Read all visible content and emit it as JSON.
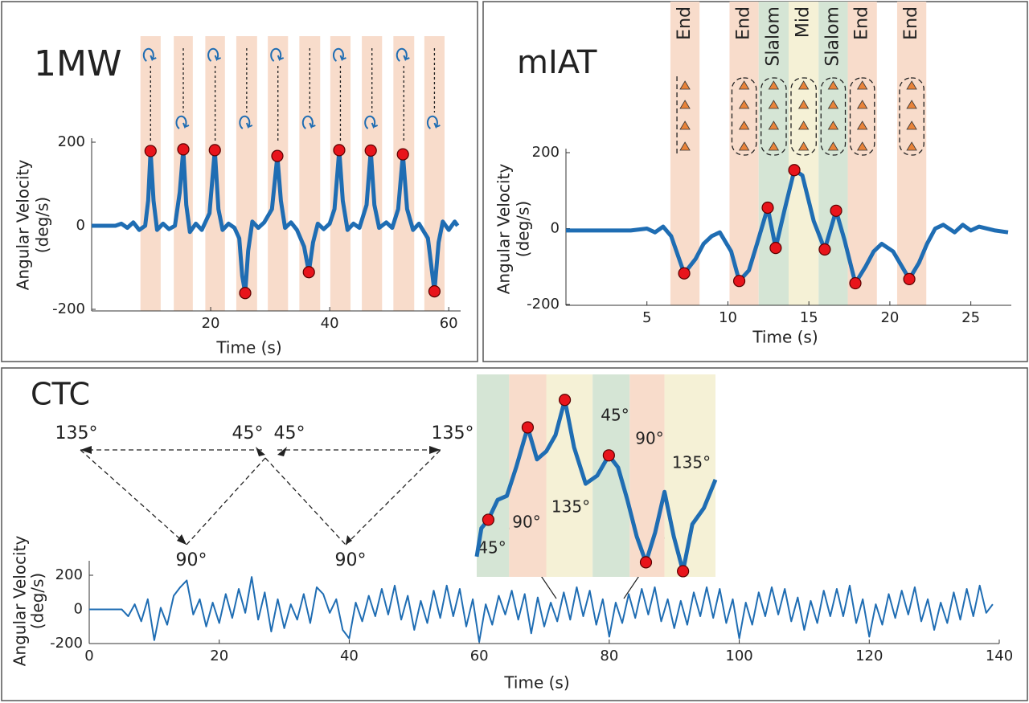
{
  "chart_data": [
    {
      "type": "line",
      "title": "1MW",
      "xlabel": "Time (s)",
      "ylabel": [
        "Angular Velocity",
        "(deg/s)"
      ],
      "xlim": [
        0,
        62
      ],
      "ylim": [
        -200,
        200
      ],
      "xticks": [
        20,
        40,
        60
      ],
      "yticks": [
        -200,
        0,
        200
      ],
      "color": "#1f6db3",
      "x": [
        0,
        4,
        5,
        6,
        7,
        8,
        9,
        9.5,
        9.9,
        10.4,
        11,
        12,
        13,
        14,
        14.8,
        15.4,
        15.9,
        16.5,
        17.5,
        18.5,
        19.8,
        20.7,
        21.3,
        22,
        23,
        24,
        24.8,
        25.3,
        25.8,
        26.3,
        27,
        28,
        29,
        30.3,
        31.2,
        31.8,
        32.5,
        33.5,
        34.5,
        35.7,
        36.5,
        37.2,
        38,
        39,
        40,
        40.8,
        41.6,
        42.2,
        43,
        44,
        45,
        46.2,
        46.9,
        47.5,
        48.3,
        49.5,
        50.5,
        51.5,
        52.3,
        53,
        54,
        55,
        56.5,
        57.6,
        58.3,
        59,
        60,
        61,
        61.5
      ],
      "values": [
        0,
        0,
        5,
        -5,
        8,
        -10,
        0,
        60,
        179,
        60,
        -10,
        5,
        -8,
        0,
        80,
        183,
        50,
        -15,
        5,
        -10,
        30,
        181,
        40,
        -10,
        5,
        -5,
        -30,
        -120,
        -161,
        -60,
        10,
        -5,
        8,
        40,
        167,
        60,
        -5,
        8,
        -10,
        -50,
        -111,
        -40,
        5,
        -8,
        5,
        40,
        181,
        60,
        -10,
        5,
        -5,
        50,
        180,
        50,
        -5,
        8,
        -5,
        40,
        171,
        40,
        -10,
        5,
        -30,
        -157,
        -40,
        10,
        -10,
        10,
        0
      ],
      "markers": {
        "color": "#e8141b",
        "x": [
          9.9,
          15.4,
          20.7,
          25.8,
          31.2,
          36.5,
          41.6,
          46.9,
          52.3,
          57.6
        ],
        "values": [
          179,
          183,
          181,
          -161,
          167,
          -111,
          181,
          180,
          171,
          -157
        ]
      },
      "bands": [
        {
          "range": [
            8.2,
            11.6
          ],
          "color": "#f8dccb"
        },
        {
          "range": [
            13.8,
            17.0
          ],
          "color": "#f8dccb"
        },
        {
          "range": [
            19.1,
            22.4
          ],
          "color": "#f8dccb"
        },
        {
          "range": [
            24.3,
            27.8
          ],
          "color": "#f8dccb"
        },
        {
          "range": [
            29.6,
            33.0
          ],
          "color": "#f8dccb"
        },
        {
          "range": [
            34.9,
            38.4
          ],
          "color": "#f8dccb"
        },
        {
          "range": [
            40.1,
            43.5
          ],
          "color": "#f8dccb"
        },
        {
          "range": [
            45.4,
            48.8
          ],
          "color": "#f8dccb"
        },
        {
          "range": [
            50.7,
            54.2
          ],
          "color": "#f8dccb"
        },
        {
          "range": [
            55.9,
            59.3
          ],
          "color": "#f8dccb"
        }
      ]
    },
    {
      "type": "line",
      "title": "mIAT",
      "xlabel": "Time (s)",
      "ylabel": [
        "Angular Velocity",
        "(deg/s)"
      ],
      "xlim": [
        0,
        27.5
      ],
      "ylim": [
        -200,
        200
      ],
      "xticks": [
        5,
        10,
        15,
        20,
        25
      ],
      "yticks": [
        -200,
        0,
        200
      ],
      "color": "#1f6db3",
      "x": [
        0,
        4,
        5,
        5.5,
        6,
        6.5,
        7.3,
        8,
        8.5,
        9,
        9.5,
        10.2,
        10.7,
        11.3,
        11.8,
        12.46,
        12.95,
        13.5,
        14.1,
        14.6,
        15.3,
        15.98,
        16.68,
        17.2,
        17.87,
        18.5,
        19,
        19.5,
        20.2,
        21.2,
        21.8,
        22.3,
        22.8,
        23.3,
        24,
        24.5,
        25,
        25.5,
        26.5,
        27.3
      ],
      "values": [
        -5,
        -5,
        0,
        -10,
        5,
        -20,
        -118,
        -80,
        -40,
        -20,
        -10,
        -60,
        -138,
        -110,
        -40,
        55,
        -51,
        50,
        154,
        140,
        20,
        -55,
        47,
        -30,
        -144,
        -100,
        -60,
        -40,
        -60,
        -133,
        -90,
        -40,
        0,
        10,
        -10,
        10,
        -5,
        5,
        -5,
        -10
      ],
      "markers": {
        "color": "#e8141b",
        "x": [
          7.3,
          10.7,
          12.46,
          12.95,
          14.1,
          15.98,
          16.68,
          17.87,
          21.2
        ],
        "values": [
          -118,
          -138,
          55,
          -51,
          154,
          -55,
          47,
          -144,
          -133
        ]
      },
      "bands": [
        {
          "range": [
            6.45,
            8.25
          ],
          "color": "#f8dccb",
          "label": "End"
        },
        {
          "range": [
            10.1,
            11.9
          ],
          "color": "#f8dccb",
          "label": "End"
        },
        {
          "range": [
            11.9,
            13.75
          ],
          "color": "#d5e5d5",
          "label": "Slalom"
        },
        {
          "range": [
            13.75,
            15.6
          ],
          "color": "#f5f1d6",
          "label": "Mid"
        },
        {
          "range": [
            15.6,
            17.4
          ],
          "color": "#d5e5d5",
          "label": "Slalom"
        },
        {
          "range": [
            17.4,
            19.2
          ],
          "color": "#f8dccb",
          "label": "End"
        },
        {
          "range": [
            20.45,
            22.25
          ],
          "color": "#f8dccb",
          "label": "End"
        }
      ]
    },
    {
      "type": "line",
      "title": "CTC",
      "xlabel": "Time (s)",
      "ylabel": [
        "Angular Velocity",
        "(deg/s)"
      ],
      "xlim": [
        0,
        140
      ],
      "ylim": [
        -200,
        200
      ],
      "xticks": [
        0,
        20,
        40,
        60,
        80,
        100,
        120,
        140
      ],
      "yticks": [
        -200,
        0,
        200
      ],
      "color": "#1f6db3",
      "diagram_labels": [
        "135°",
        "45°",
        "45°",
        "135°",
        "90°",
        "90°"
      ],
      "x": [
        0,
        1,
        2,
        3,
        4,
        5,
        6,
        7,
        8,
        9,
        10,
        11,
        12,
        13,
        14,
        15,
        16,
        17,
        18,
        19,
        20,
        21,
        22,
        23,
        24,
        25,
        26,
        27,
        28,
        29,
        30,
        31,
        32,
        33,
        34,
        35,
        36,
        37,
        38,
        39,
        40,
        41,
        42,
        43,
        44,
        45,
        46,
        47,
        48,
        49,
        50,
        51,
        52,
        53,
        54,
        55,
        56,
        57,
        58,
        59,
        60,
        61,
        62,
        63,
        64,
        65,
        66,
        67,
        68,
        69,
        70,
        71,
        72,
        73,
        74,
        75,
        76,
        77,
        78,
        79,
        80,
        81,
        82,
        83,
        84,
        85,
        86,
        87,
        88,
        89,
        90,
        91,
        92,
        93,
        94,
        95,
        96,
        97,
        98,
        99,
        100,
        101,
        102,
        103,
        104,
        105,
        106,
        107,
        108,
        109,
        110,
        111,
        112,
        113,
        114,
        115,
        116,
        117,
        118,
        119,
        120,
        121,
        122,
        123,
        124,
        125,
        126,
        127,
        128,
        129,
        130,
        131,
        132,
        133,
        134,
        135,
        136,
        137,
        138,
        139
      ],
      "values": [
        0,
        0,
        0,
        0,
        0,
        0,
        -40,
        30,
        -70,
        60,
        -180,
        10,
        -90,
        80,
        130,
        170,
        -30,
        60,
        -100,
        40,
        -80,
        90,
        -50,
        120,
        -20,
        190,
        -60,
        100,
        -130,
        60,
        -110,
        30,
        -60,
        90,
        -80,
        130,
        90,
        -20,
        60,
        -120,
        -170,
        40,
        -70,
        80,
        -40,
        120,
        -30,
        140,
        -60,
        80,
        -120,
        50,
        -80,
        110,
        -50,
        140,
        -40,
        120,
        -100,
        60,
        -190,
        30,
        -90,
        80,
        -30,
        110,
        -60,
        90,
        -140,
        70,
        -100,
        40,
        -70,
        100,
        -60,
        130,
        -40,
        110,
        -90,
        60,
        -160,
        40,
        -80,
        90,
        -50,
        120,
        -30,
        130,
        -70,
        60,
        -110,
        50,
        -90,
        100,
        -40,
        130,
        -50,
        120,
        -80,
        60,
        -170,
        40,
        -90,
        100,
        -40,
        130,
        -30,
        120,
        -70,
        70,
        -120,
        50,
        -80,
        110,
        -40,
        120,
        -40,
        140,
        -80,
        60,
        -160,
        30,
        -90,
        90,
        -50,
        110,
        -30,
        130,
        -70,
        60,
        -120,
        40,
        -80,
        100,
        -60,
        120,
        -40,
        140,
        -20,
        30
      ]
    },
    {
      "type": "line",
      "xlim": [
        71.9,
        82.2
      ],
      "ylim": [
        -250,
        250
      ],
      "color": "#1f6db3",
      "x": [
        71.9,
        72.1,
        72.4,
        72.8,
        73.2,
        73.6,
        74.1,
        74.5,
        74.9,
        75.3,
        75.7,
        76.1,
        76.6,
        77.1,
        77.6,
        78.0,
        78.4,
        78.8,
        79.2,
        79.6,
        80.0,
        80.4,
        80.8,
        81.2,
        81.7,
        82.2
      ],
      "values": [
        -200,
        -130,
        -109,
        -60,
        -50,
        20,
        119,
        40,
        60,
        100,
        187,
        70,
        -20,
        0,
        50,
        20,
        -60,
        -150,
        -214,
        -140,
        -40,
        -150,
        -236,
        -120,
        -80,
        -10
      ],
      "markers": {
        "color": "#e8141b",
        "x": [
          72.4,
          74.1,
          75.7,
          77.6,
          79.2,
          80.8
        ],
        "values": [
          -109,
          119,
          187,
          50,
          -214,
          -236
        ]
      },
      "bands": [
        {
          "range": [
            71.9,
            73.3
          ],
          "color": "#d5e5d5",
          "label": "45°"
        },
        {
          "range": [
            73.3,
            74.9
          ],
          "color": "#f8dccb",
          "label": "90°"
        },
        {
          "range": [
            74.9,
            76.9
          ],
          "color": "#f5f1d6",
          "label": "135°"
        },
        {
          "range": [
            76.9,
            78.5
          ],
          "color": "#d5e5d5",
          "label": "45°"
        },
        {
          "range": [
            78.5,
            80.0
          ],
          "color": "#f8dccb",
          "label": "90°"
        },
        {
          "range": [
            80.0,
            82.2
          ],
          "color": "#f5f1d6",
          "label": "135°"
        }
      ]
    }
  ]
}
